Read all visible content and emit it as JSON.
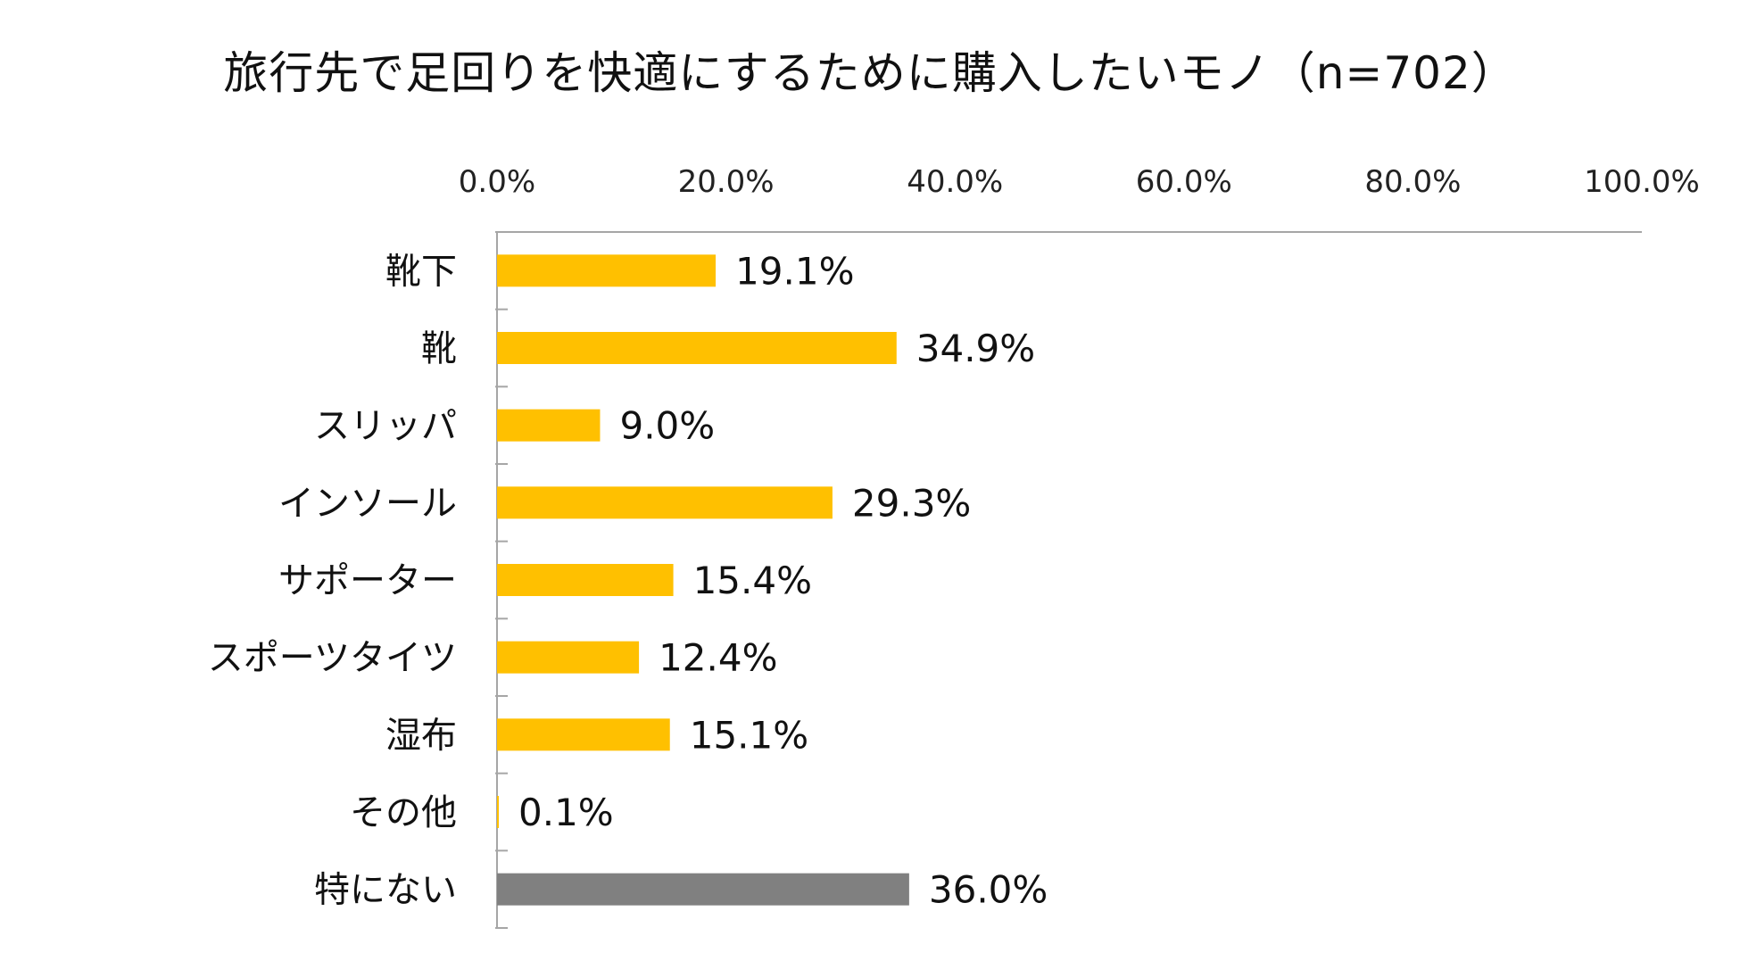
{
  "chart_data": {
    "type": "bar",
    "orientation": "horizontal",
    "title": "旅行先で足回りを快適にするために購入したいモノ（n=702）",
    "xlim": [
      0,
      100
    ],
    "x_tick_labels": [
      "0.0%",
      "20.0%",
      "40.0%",
      "60.0%",
      "80.0%",
      "100.0%"
    ],
    "x_axis_position": "top",
    "grid": false,
    "categories": [
      "靴下",
      "靴",
      "スリッパ",
      "インソール",
      "サポーター",
      "スポーツタイツ",
      "湿布",
      "その他",
      "特にない"
    ],
    "values": [
      19.1,
      34.9,
      9.0,
      29.3,
      15.4,
      12.4,
      15.1,
      0.1,
      36.0
    ],
    "data_labels": [
      "19.1%",
      "34.9%",
      "9.0%",
      "29.3%",
      "15.4%",
      "12.4%",
      "15.1%",
      "0.1%",
      "36.0%"
    ],
    "colors": [
      "#FFC000",
      "#FFC000",
      "#FFC000",
      "#FFC000",
      "#FFC000",
      "#FFC000",
      "#FFC000",
      "#FFC000",
      "#808080"
    ],
    "axis_color": "#a6a6a6"
  }
}
